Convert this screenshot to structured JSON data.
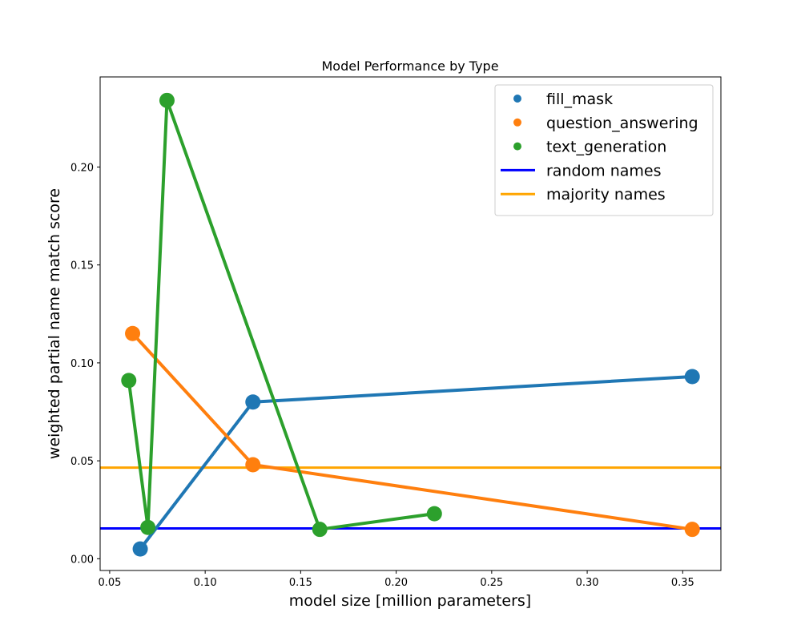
{
  "chart_data": {
    "type": "line",
    "title": "Model Performance by Type",
    "xlabel": "model size [million parameters]",
    "ylabel": "weighted partial name match score",
    "xlim": [
      0.045,
      0.37
    ],
    "ylim": [
      -0.006,
      0.246
    ],
    "xticks": [
      0.05,
      0.1,
      0.15,
      0.2,
      0.25,
      0.3,
      0.35
    ],
    "xtick_labels": [
      "0.05",
      "0.10",
      "0.15",
      "0.20",
      "0.25",
      "0.30",
      "0.35"
    ],
    "yticks": [
      0.0,
      0.05,
      0.1,
      0.15,
      0.2
    ],
    "ytick_labels": [
      "0.00",
      "0.05",
      "0.10",
      "0.15",
      "0.20"
    ],
    "grid": false,
    "legend_position": "top-right",
    "series": [
      {
        "name": "fill_mask",
        "color": "#1f77b4",
        "points": [
          {
            "x": 0.066,
            "y": 0.005
          },
          {
            "x": 0.125,
            "y": 0.08
          },
          {
            "x": 0.355,
            "y": 0.093
          }
        ]
      },
      {
        "name": "question_answering",
        "color": "#ff7f0e",
        "points": [
          {
            "x": 0.062,
            "y": 0.115
          },
          {
            "x": 0.125,
            "y": 0.048
          },
          {
            "x": 0.355,
            "y": 0.015
          }
        ]
      },
      {
        "name": "text_generation",
        "color": "#2ca02c",
        "points": [
          {
            "x": 0.06,
            "y": 0.091
          },
          {
            "x": 0.07,
            "y": 0.016
          },
          {
            "x": 0.08,
            "y": 0.234
          },
          {
            "x": 0.16,
            "y": 0.015
          },
          {
            "x": 0.22,
            "y": 0.023
          }
        ]
      }
    ],
    "reference_lines": [
      {
        "name": "random names",
        "y": 0.0155,
        "color": "#0000ff"
      },
      {
        "name": "majority names",
        "y": 0.0465,
        "color": "#ffa500"
      }
    ]
  }
}
